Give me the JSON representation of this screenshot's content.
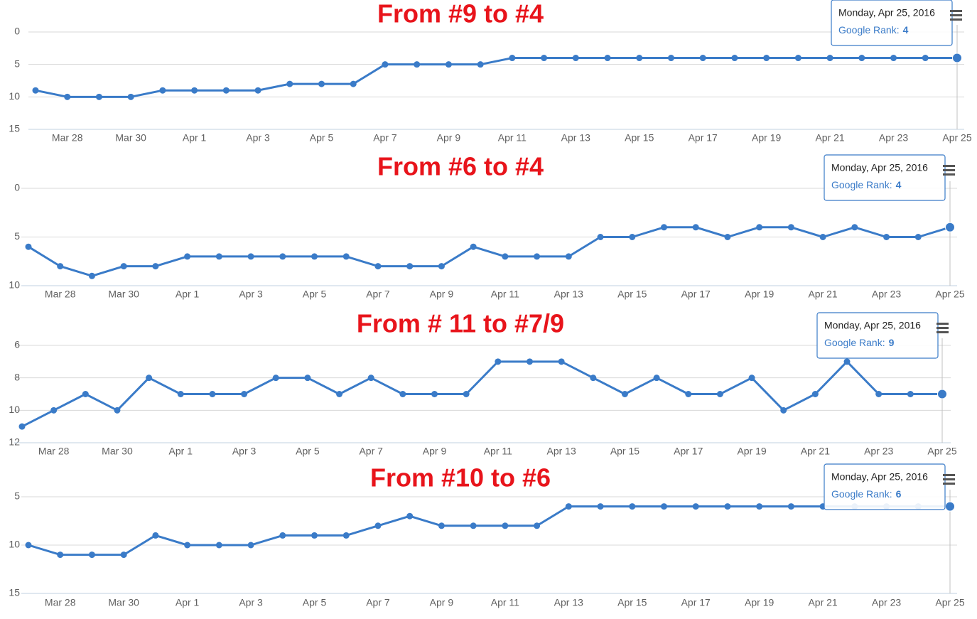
{
  "chart_data": [
    {
      "type": "line",
      "title": "From #9 to #4",
      "categories": [
        null,
        "Mar 28",
        null,
        "Mar 30",
        null,
        "Apr 1",
        null,
        "Apr 3",
        null,
        "Apr 5",
        null,
        "Apr 7",
        null,
        "Apr 9",
        null,
        "Apr 11",
        null,
        "Apr 13",
        null,
        "Apr 15",
        null,
        "Apr 17",
        null,
        "Apr 19",
        null,
        "Apr 21",
        null,
        "Apr 23",
        null,
        "Apr 25"
      ],
      "values": [
        9,
        10,
        10,
        10,
        9,
        9,
        9,
        9,
        8,
        8,
        8,
        5,
        5,
        5,
        5,
        4,
        4,
        4,
        4,
        4,
        4,
        4,
        4,
        4,
        4,
        4,
        4,
        4,
        4,
        4
      ],
      "color": "#3a7bc8",
      "ylim": [
        0,
        15
      ],
      "yticks": [
        0,
        5,
        10,
        15
      ],
      "reversed": true,
      "grid": true,
      "tooltip": {
        "header": "Monday, Apr 25, 2016",
        "label": "Google Rank:"
      }
    },
    {
      "type": "line",
      "title": "From #6 to #4",
      "categories": [
        null,
        "Mar 28",
        null,
        "Mar 30",
        null,
        "Apr 1",
        null,
        "Apr 3",
        null,
        "Apr 5",
        null,
        "Apr 7",
        null,
        "Apr 9",
        null,
        "Apr 11",
        null,
        "Apr 13",
        null,
        "Apr 15",
        null,
        "Apr 17",
        null,
        "Apr 19",
        null,
        "Apr 21",
        null,
        "Apr 23",
        null,
        "Apr 25"
      ],
      "values": [
        6,
        8,
        9,
        8,
        8,
        7,
        7,
        7,
        7,
        7,
        7,
        8,
        8,
        8,
        6,
        7,
        7,
        7,
        5,
        5,
        4,
        4,
        5,
        4,
        4,
        5,
        4,
        5,
        5,
        4
      ],
      "color": "#3a7bc8",
      "ylim": [
        0,
        10
      ],
      "yticks": [
        0,
        5,
        10
      ],
      "reversed": true,
      "grid": true,
      "tooltip": {
        "header": "Monday, Apr 25, 2016",
        "label": "Google Rank:"
      }
    },
    {
      "type": "line",
      "title": "From # 11 to #7/9",
      "categories": [
        null,
        "Mar 28",
        null,
        "Mar 30",
        null,
        "Apr 1",
        null,
        "Apr 3",
        null,
        "Apr 5",
        null,
        "Apr 7",
        null,
        "Apr 9",
        null,
        "Apr 11",
        null,
        "Apr 13",
        null,
        "Apr 15",
        null,
        "Apr 17",
        null,
        "Apr 19",
        null,
        "Apr 21",
        null,
        "Apr 23",
        null,
        "Apr 25"
      ],
      "values": [
        11,
        10,
        9,
        10,
        8,
        9,
        9,
        9,
        8,
        8,
        9,
        8,
        9,
        9,
        9,
        7,
        7,
        7,
        8,
        9,
        8,
        9,
        9,
        8,
        10,
        9,
        7,
        9,
        9,
        9
      ],
      "color": "#3a7bc8",
      "ylim": [
        6,
        12
      ],
      "yticks": [
        6,
        8,
        10,
        12
      ],
      "reversed": true,
      "grid": true,
      "tooltip": {
        "header": "Monday, Apr 25, 2016",
        "label": "Google Rank:"
      }
    },
    {
      "type": "line",
      "title": "From #10 to #6",
      "categories": [
        null,
        "Mar 28",
        null,
        "Mar 30",
        null,
        "Apr 1",
        null,
        "Apr 3",
        null,
        "Apr 5",
        null,
        "Apr 7",
        null,
        "Apr 9",
        null,
        "Apr 11",
        null,
        "Apr 13",
        null,
        "Apr 15",
        null,
        "Apr 17",
        null,
        "Apr 19",
        null,
        "Apr 21",
        null,
        "Apr 23",
        null,
        "Apr 25"
      ],
      "values": [
        10,
        11,
        11,
        11,
        9,
        10,
        10,
        10,
        9,
        9,
        9,
        8,
        7,
        8,
        8,
        8,
        8,
        6,
        6,
        6,
        6,
        6,
        6,
        6,
        6,
        6,
        6,
        6,
        6,
        6
      ],
      "color": "#3a7bc8",
      "ylim": [
        5,
        15
      ],
      "yticks": [
        5,
        10,
        15
      ],
      "reversed": true,
      "grid": true,
      "tooltip": {
        "header": "Monday, Apr 25, 2016",
        "label": "Google Rank:"
      }
    }
  ]
}
